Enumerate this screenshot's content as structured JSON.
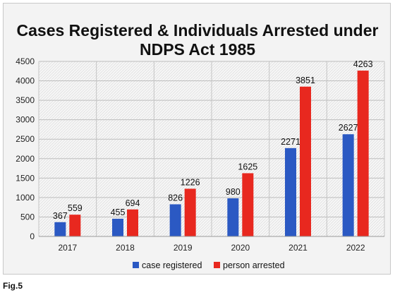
{
  "figure_label": "Fig.5",
  "chart_data": {
    "type": "bar",
    "title_lines": [
      "Cases Registered & Individuals Arrested under",
      "NDPS Act 1985"
    ],
    "categories": [
      "2017",
      "2018",
      "2019",
      "2020",
      "2021",
      "2022"
    ],
    "series": [
      {
        "name": "case registered",
        "color": "#2b59c3",
        "values": [
          367,
          455,
          826,
          980,
          2271,
          2627
        ]
      },
      {
        "name": "person arrested",
        "color": "#e8281f",
        "values": [
          559,
          694,
          1226,
          1625,
          3851,
          4263
        ]
      }
    ],
    "ylim": [
      0,
      4500
    ],
    "yticks": [
      "0",
      "500",
      "1000",
      "1500",
      "2000",
      "2500",
      "3000",
      "3500",
      "4000",
      "4500"
    ],
    "grid": true,
    "legend_position": "bottom"
  }
}
